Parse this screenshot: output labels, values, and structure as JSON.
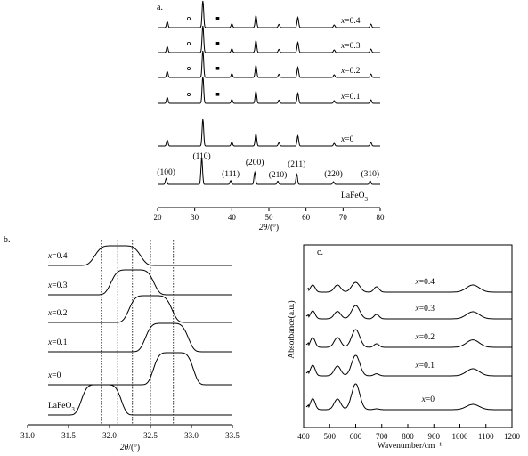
{
  "chart_data": [
    {
      "panel": "a.",
      "type": "line",
      "xlabel_italic": "2θ",
      "xlabel_unit": "/(°)",
      "xlim": [
        20,
        80
      ],
      "xticks": [
        20,
        30,
        40,
        50,
        60,
        70,
        80
      ],
      "series": [
        {
          "name": "x=0.4",
          "label_var": "x",
          "label_val": "=0.4"
        },
        {
          "name": "x=0.3",
          "label_var": "x",
          "label_val": "=0.3"
        },
        {
          "name": "x=0.2",
          "label_var": "x",
          "label_val": "=0.2"
        },
        {
          "name": "x=0.1",
          "label_var": "x",
          "label_val": "=0.1"
        },
        {
          "name": "x=0",
          "label_var": "x",
          "label_val": "=0"
        },
        {
          "name": "LaFeO3",
          "label_main": "LaFeO",
          "label_sub": "3"
        }
      ],
      "peaks_2theta": [
        22.6,
        32.2,
        40.0,
        46.5,
        52.7,
        57.8,
        67.6,
        77.5
      ],
      "peaks_ref_2theta": [
        22.3,
        31.9,
        39.7,
        46.2,
        52.4,
        57.5,
        67.4,
        77.3
      ],
      "peak_labels": [
        {
          "text": "(100)",
          "x": 22.3
        },
        {
          "text": "(110)",
          "x": 31.9
        },
        {
          "text": "(111)",
          "x": 39.7
        },
        {
          "text": "(200)",
          "x": 46.2
        },
        {
          "text": "(210)",
          "x": 52.4
        },
        {
          "text": "(211)",
          "x": 57.5
        },
        {
          "text": "(220)",
          "x": 67.4
        },
        {
          "text": "(310)",
          "x": 77.3
        }
      ],
      "marker_circle_2theta": 28.4,
      "marker_square_2theta": 36.2
    },
    {
      "panel": "b.",
      "type": "line",
      "xlabel_italic": "2θ",
      "xlabel_unit": "/(°)",
      "xlim": [
        31.0,
        33.5
      ],
      "xticks": [
        "31.0",
        "31.5",
        "32.0",
        "32.5",
        "33.0",
        "33.5"
      ],
      "series": [
        {
          "name": "x=0.4",
          "label_var": "x",
          "label_val": "=0.4",
          "peak": 32.1
        },
        {
          "name": "x=0.3",
          "label_var": "x",
          "label_val": "=0.3",
          "peak": 32.28
        },
        {
          "name": "x=0.2",
          "label_var": "x",
          "label_val": "=0.2",
          "peak": 32.5
        },
        {
          "name": "x=0.1",
          "label_var": "x",
          "label_val": "=0.1",
          "peak": 32.7
        },
        {
          "name": "x=0",
          "label_var": "x",
          "label_val": "=0",
          "peak": 32.78
        },
        {
          "name": "LaFeO3",
          "label_main": "LaFeO",
          "label_sub": "3",
          "peak": 31.9
        }
      ],
      "reference_lines": [
        31.9,
        32.1,
        32.28,
        32.5,
        32.7,
        32.78
      ]
    },
    {
      "panel": "c.",
      "type": "line",
      "ylabel": "Absorbance(a.u.)",
      "xlabel": "Wavenumber/cm⁻¹",
      "xlim": [
        400,
        1200
      ],
      "xticks": [
        400,
        500,
        600,
        700,
        800,
        900,
        1000,
        1100,
        1200
      ],
      "bands_cm1": [
        435,
        530,
        600,
        680,
        1050
      ],
      "series": [
        {
          "name": "x=0.4",
          "label_var": "x",
          "label_val": "=0.4"
        },
        {
          "name": "x=0.3",
          "label_var": "x",
          "label_val": "=0.3"
        },
        {
          "name": "x=0.2",
          "label_var": "x",
          "label_val": "=0.2"
        },
        {
          "name": "x=0.1",
          "label_var": "x",
          "label_val": "=0.1"
        },
        {
          "name": "x=0",
          "label_var": "x",
          "label_val": "=0"
        }
      ]
    }
  ]
}
